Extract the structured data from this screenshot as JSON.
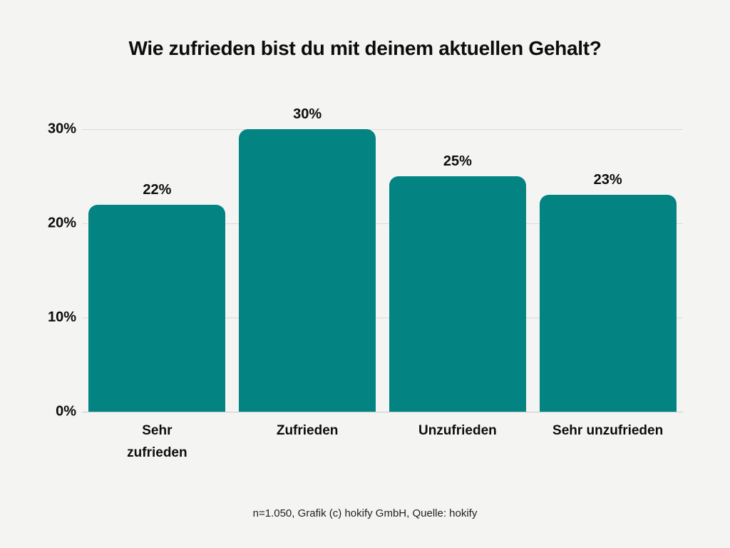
{
  "page": {
    "background_color": "#f4f4f3"
  },
  "chart_data": {
    "type": "bar",
    "title": "Wie zufrieden bist du mit deinem aktuellen Gehalt?",
    "categories": [
      "Sehr\nzufrieden",
      "Zufrieden",
      "Unzufrieden",
      "Sehr unzufrieden"
    ],
    "values": [
      22,
      30,
      25,
      23
    ],
    "value_labels": [
      "22%",
      "30%",
      "25%",
      "23%"
    ],
    "yticks": [
      {
        "value": 0,
        "label": "0%"
      },
      {
        "value": 10,
        "label": "10%"
      },
      {
        "value": 20,
        "label": "20%"
      },
      {
        "value": 30,
        "label": "30%"
      }
    ],
    "ylim": [
      0,
      30
    ],
    "grid": "horizontal-only",
    "legend": "none",
    "bar_color": "#038482",
    "grid_color": "#dadada",
    "baseline_color": "#c9c9c9",
    "text_color": "#0d0d0d",
    "footer": "n=1.050, Grafik (c) hokify GmbH, Quelle: hokify"
  }
}
